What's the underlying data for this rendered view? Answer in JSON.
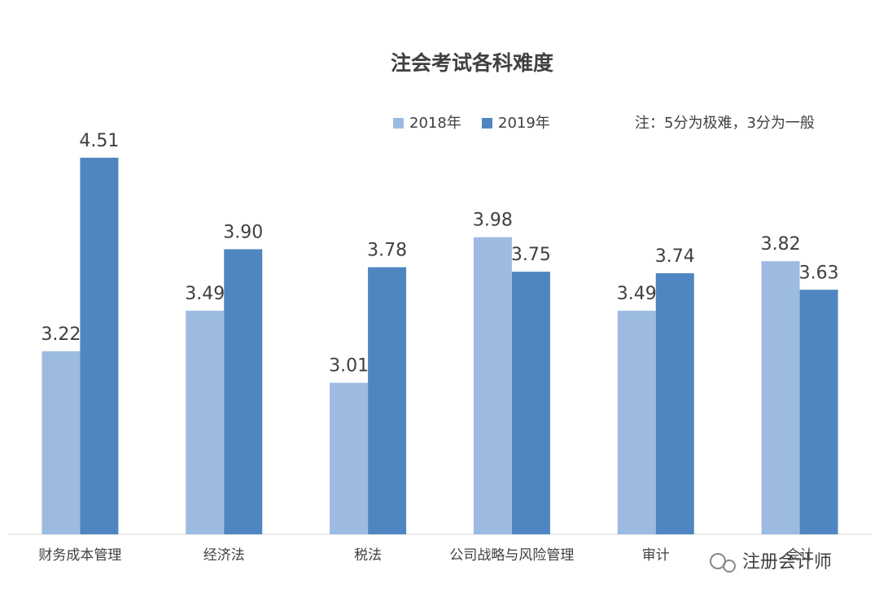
{
  "chart_data": {
    "type": "bar",
    "title": "注会考试各科难度",
    "note": "注：5分为极难，3分为一般",
    "footer_text": "注册会计师",
    "categories": [
      "财务成本管理",
      "经济法",
      "税法",
      "公司战略与风险管理",
      "审计",
      "会计"
    ],
    "series": [
      {
        "name": "2018年",
        "color": "#9dbbe1",
        "values": [
          3.22,
          3.49,
          3.01,
          3.98,
          3.49,
          3.82
        ],
        "value_labels": [
          "3.22",
          "3.49",
          "3.01",
          "3.98",
          "3.49",
          "3.82"
        ]
      },
      {
        "name": "2019年",
        "color": "#4f86c1",
        "values": [
          4.51,
          3.9,
          3.78,
          3.75,
          3.74,
          3.63
        ],
        "value_labels": [
          "4.51",
          "3.90",
          "3.78",
          "3.75",
          "3.74",
          "3.63"
        ]
      }
    ],
    "ylim": [
      2,
      5
    ],
    "grid": false
  }
}
